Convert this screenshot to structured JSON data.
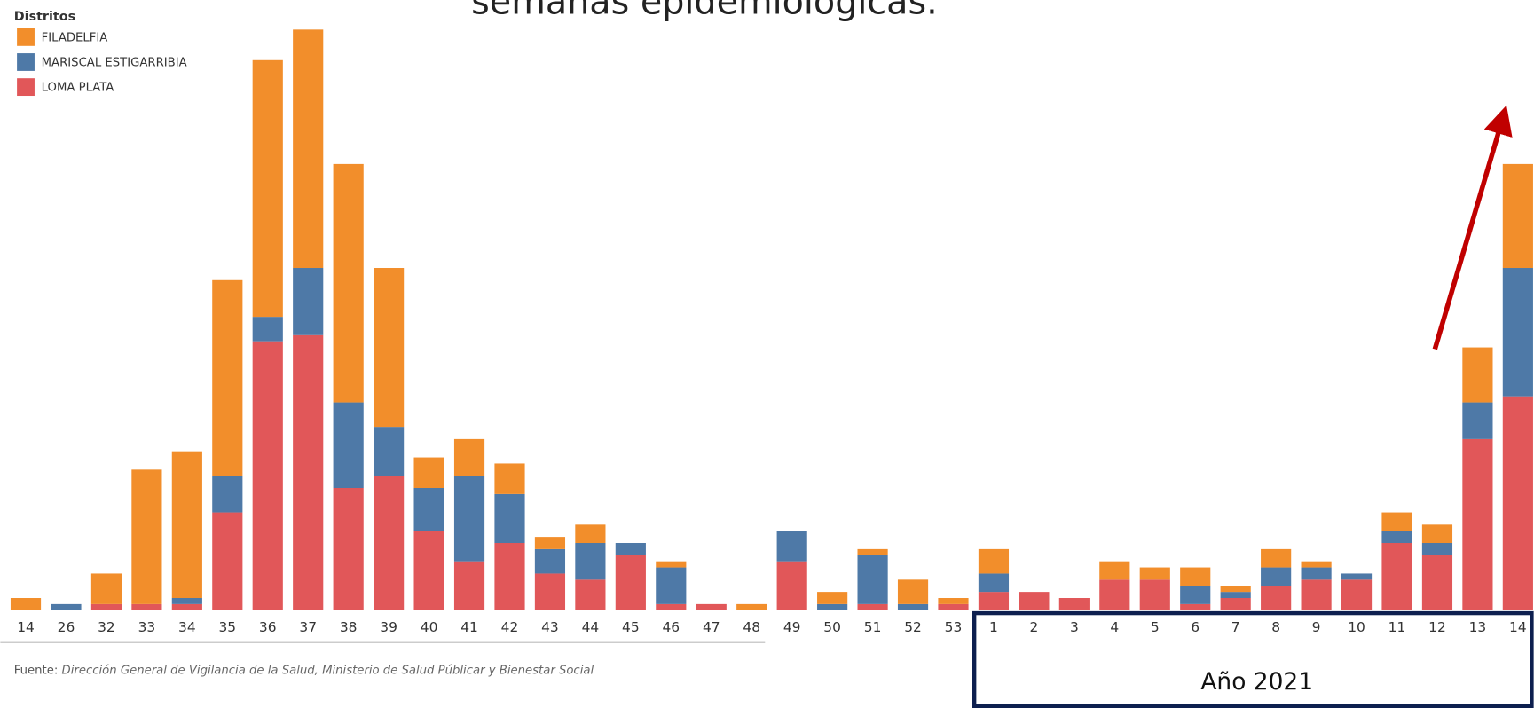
{
  "title": "semanas epidemiológicas.",
  "chart_data": {
    "type": "stacked_bar",
    "legend_title": "Distritos",
    "categories": [
      "14",
      "26",
      "32",
      "33",
      "34",
      "35",
      "36",
      "37",
      "38",
      "39",
      "40",
      "41",
      "42",
      "43",
      "44",
      "45",
      "46",
      "47",
      "48",
      "49",
      "50",
      "51",
      "52",
      "53",
      "1",
      "2",
      "3",
      "4",
      "5",
      "6",
      "7",
      "8",
      "9",
      "10",
      "11",
      "12",
      "13",
      "14"
    ],
    "series": [
      {
        "name": "FILADELFIA",
        "color": "#f28e2b",
        "values": [
          2,
          0,
          5,
          22,
          24,
          32,
          42,
          39,
          39,
          26,
          5,
          6,
          5,
          2,
          3,
          0,
          1,
          0,
          1,
          0,
          2,
          1,
          4,
          1,
          4,
          0,
          0,
          3,
          2,
          3,
          1,
          3,
          1,
          0,
          3,
          3,
          9,
          17
        ]
      },
      {
        "name": "MARISCAL ESTIGARRIBIA",
        "color": "#4e79a7",
        "values": [
          0,
          1,
          0,
          0,
          1,
          6,
          4,
          11,
          14,
          8,
          7,
          14,
          8,
          4,
          6,
          2,
          6,
          0,
          0,
          5,
          1,
          8,
          1,
          0,
          3,
          0,
          0,
          0,
          0,
          3,
          1,
          3,
          2,
          1,
          2,
          2,
          6,
          21
        ]
      },
      {
        "name": "LOMA PLATA",
        "color": "#e15759",
        "values": [
          0,
          0,
          1,
          1,
          1,
          16,
          44,
          45,
          20,
          22,
          13,
          8,
          11,
          6,
          5,
          9,
          1,
          1,
          0,
          8,
          0,
          1,
          0,
          1,
          3,
          3,
          2,
          5,
          5,
          1,
          2,
          4,
          5,
          5,
          11,
          9,
          28,
          35
        ]
      }
    ],
    "ylim": [
      0,
      100
    ],
    "annotation": "Año 2021",
    "source_label": "Fuente:",
    "source": "Dirección General de Vigilancia de la Salud, Ministerio de Salud Públicar y Bienestar Social"
  }
}
